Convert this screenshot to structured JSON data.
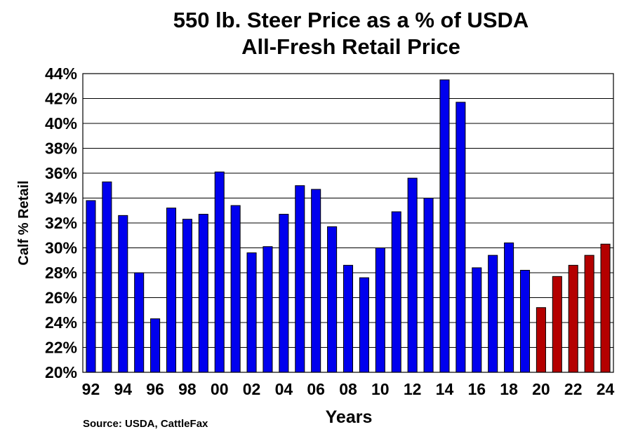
{
  "chart_data": {
    "type": "bar",
    "title_line1": "550 lb. Steer Price as a % of USDA",
    "title_line2": "All-Fresh Retail Price",
    "xlabel": "Years",
    "ylabel": "Calf % Retail",
    "source": "Source: USDA, CattleFax",
    "ylim": [
      20,
      44
    ],
    "y_ticks": [
      "20%",
      "22%",
      "24%",
      "26%",
      "28%",
      "30%",
      "32%",
      "34%",
      "36%",
      "38%",
      "40%",
      "42%",
      "44%"
    ],
    "y_tick_values": [
      20,
      22,
      24,
      26,
      28,
      30,
      32,
      34,
      36,
      38,
      40,
      42,
      44
    ],
    "x_tick_labels": [
      "92",
      "94",
      "96",
      "98",
      "00",
      "02",
      "04",
      "06",
      "08",
      "10",
      "12",
      "14",
      "16",
      "18",
      "20",
      "22",
      "24"
    ],
    "categories": [
      "92",
      "93",
      "94",
      "95",
      "96",
      "97",
      "98",
      "99",
      "00",
      "01",
      "02",
      "03",
      "04",
      "05",
      "06",
      "07",
      "08",
      "09",
      "10",
      "11",
      "12",
      "13",
      "14",
      "15",
      "16",
      "17",
      "18",
      "19",
      "20",
      "21",
      "22",
      "23",
      "24"
    ],
    "values": [
      33.8,
      35.3,
      32.6,
      28.0,
      24.3,
      33.2,
      32.3,
      32.7,
      36.1,
      33.4,
      29.6,
      30.1,
      32.7,
      35.0,
      34.7,
      31.7,
      28.6,
      27.6,
      30.0,
      32.9,
      35.6,
      34.0,
      43.5,
      41.7,
      28.4,
      29.4,
      30.4,
      28.2,
      25.2,
      27.7,
      28.6,
      29.4,
      30.3
    ],
    "bar_colors": [
      "#0000ee",
      "#0000ee",
      "#0000ee",
      "#0000ee",
      "#0000ee",
      "#0000ee",
      "#0000ee",
      "#0000ee",
      "#0000ee",
      "#0000ee",
      "#0000ee",
      "#0000ee",
      "#0000ee",
      "#0000ee",
      "#0000ee",
      "#0000ee",
      "#0000ee",
      "#0000ee",
      "#0000ee",
      "#0000ee",
      "#0000ee",
      "#0000ee",
      "#0000ee",
      "#0000ee",
      "#0000ee",
      "#0000ee",
      "#0000ee",
      "#0000ee",
      "#b40000",
      "#b40000",
      "#b40000",
      "#b40000",
      "#b40000"
    ],
    "grid": true
  }
}
